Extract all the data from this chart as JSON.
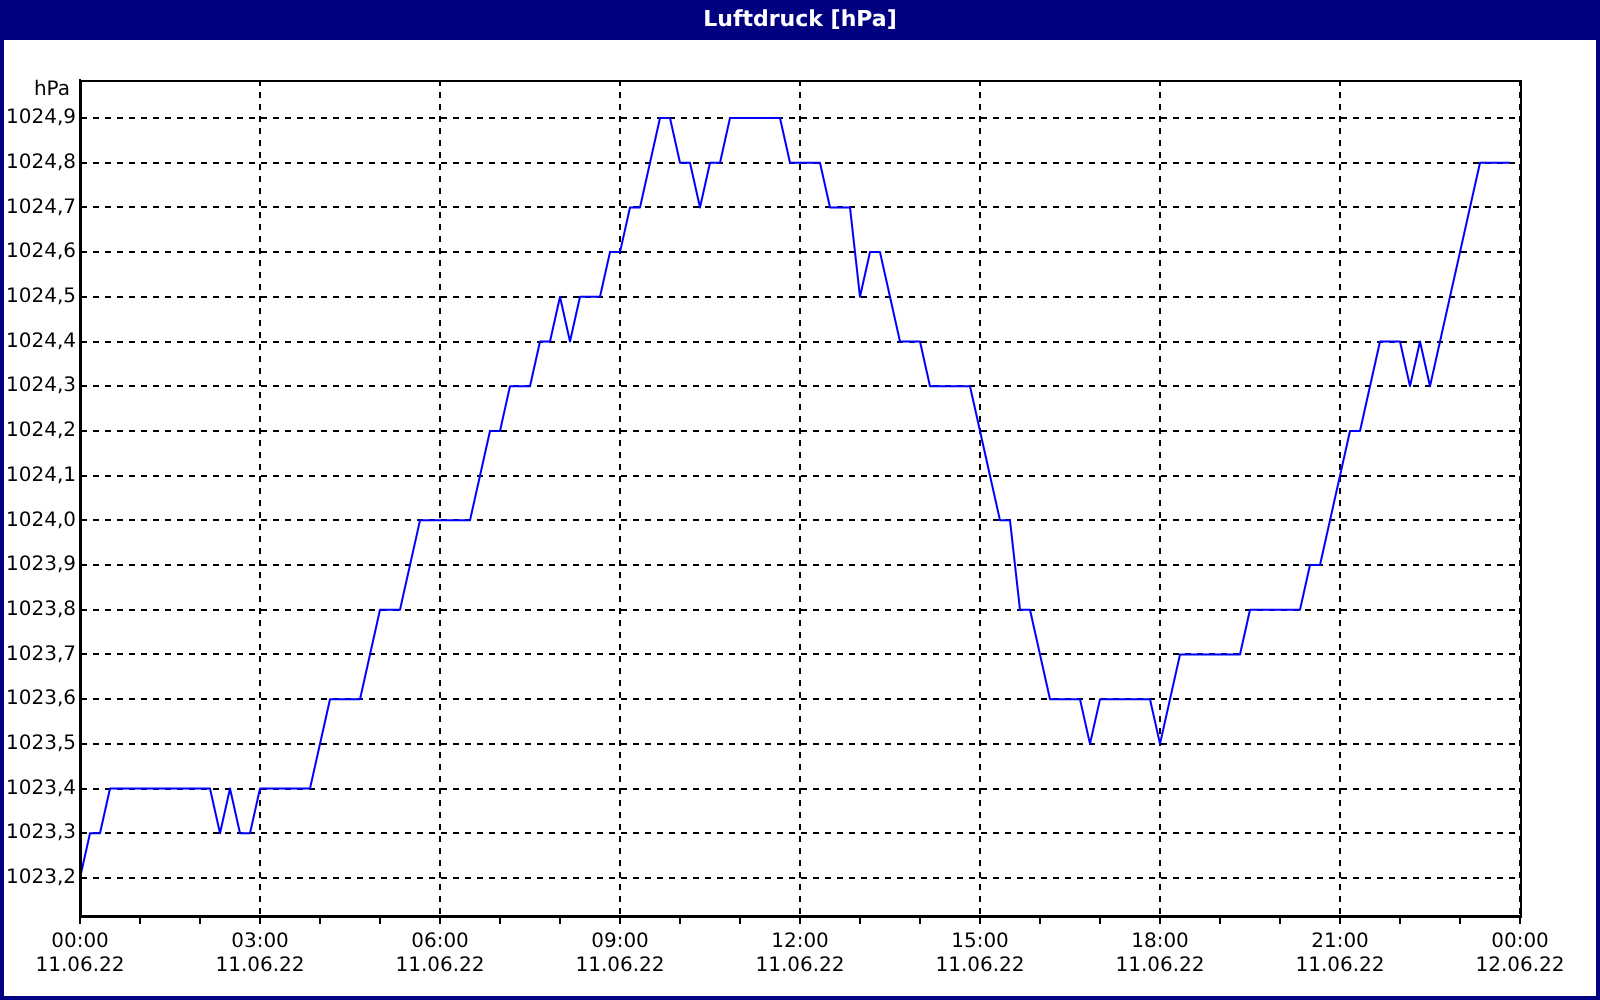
{
  "chart_data": {
    "type": "line",
    "title": "Luftdruck [hPa]",
    "ylabel": "hPa",
    "x": [
      "--06-11T00:00",
      "--06-11T00:10",
      "--06-11T00:20",
      "--06-11T00:30",
      "--06-11T02:10",
      "--06-11T02:20",
      "--06-11T02:30",
      "--06-11T02:40",
      "--06-11T02:50",
      "--06-11T03:00",
      "--06-11T03:50",
      "--06-11T04:10",
      "--06-11T04:40",
      "--06-11T05:00",
      "--06-11T05:20",
      "--06-11T05:40",
      "--06-11T06:30",
      "--06-11T06:50",
      "--06-11T07:00",
      "--06-11T07:10",
      "--06-11T07:30",
      "--06-11T07:40",
      "--06-11T07:50",
      "--06-11T08:00",
      "--06-11T08:10",
      "--06-11T08:20",
      "--06-11T08:40",
      "--06-11T08:50",
      "--06-11T09:00",
      "--06-11T09:10",
      "--06-11T09:20",
      "--06-11T09:40",
      "--06-11T09:50",
      "--06-11T10:00",
      "--06-11T10:10",
      "--06-11T10:20",
      "--06-11T10:30",
      "--06-11T10:40",
      "--06-11T10:50",
      "--06-11T11:40",
      "--06-11T11:50",
      "--06-11T12:20",
      "--06-11T12:30",
      "--06-11T12:50",
      "--06-11T13:00",
      "--06-11T13:10",
      "--06-11T13:20",
      "--06-11T13:40",
      "--06-11T14:00",
      "--06-11T14:10",
      "--06-11T14:50",
      "--06-11T15:20",
      "--06-11T15:30",
      "--06-11T15:40",
      "--06-11T15:50",
      "--06-11T16:00",
      "--06-11T16:10",
      "--06-11T16:40",
      "--06-11T16:50",
      "--06-11T17:00",
      "--06-11T17:50",
      "--06-11T18:00",
      "--06-11T18:20",
      "--06-11T19:20",
      "--06-11T19:30",
      "--06-11T20:20",
      "--06-11T20:30",
      "--06-11T20:40",
      "--06-11T21:10",
      "--06-11T21:20",
      "--06-11T21:40",
      "--06-11T22:00",
      "--06-11T22:10",
      "--06-11T22:20",
      "--06-11T22:30",
      "--06-11T23:20",
      "--06-11T23:50"
    ],
    "series": [
      {
        "color": "#0000ff",
        "values": [
          1023.2,
          1023.3,
          1023.3,
          1023.4,
          1023.4,
          1023.3,
          1023.4,
          1023.3,
          1023.3,
          1023.4,
          1023.4,
          1023.6,
          1023.6,
          1023.8,
          1023.8,
          1024.0,
          1024.0,
          1024.2,
          1024.2,
          1024.3,
          1024.3,
          1024.4,
          1024.4,
          1024.5,
          1024.4,
          1024.5,
          1024.5,
          1024.6,
          1024.6,
          1024.7,
          1024.7,
          1024.9,
          1024.9,
          1024.8,
          1024.8,
          1024.7,
          1024.8,
          1024.8,
          1024.9,
          1024.9,
          1024.8,
          1024.8,
          1024.7,
          1024.7,
          1024.5,
          1024.6,
          1024.6,
          1024.4,
          1024.4,
          1024.3,
          1024.3,
          1024.0,
          1024.0,
          1023.8,
          1023.8,
          1023.7,
          1023.6,
          1023.6,
          1023.5,
          1023.6,
          1023.6,
          1023.5,
          1023.7,
          1023.7,
          1023.8,
          1023.8,
          1023.9,
          1023.9,
          1024.2,
          1024.2,
          1024.4,
          1024.4,
          1024.3,
          1024.4,
          1024.3,
          1024.8,
          1024.8
        ]
      }
    ],
    "xlim": [
      "--06-11T00:00",
      "--06-12T00:00"
    ],
    "xticks": [
      {
        "value": "--06-11T00:00",
        "label": "00:00\n11.06.22"
      },
      {
        "value": "--06-11T01:00",
        "label": null
      },
      {
        "value": "--06-11T02:00",
        "label": null
      },
      {
        "value": "--06-11T03:00",
        "label": "03:00\n11.06.22"
      },
      {
        "value": "--06-11T04:00",
        "label": null
      },
      {
        "value": "--06-11T05:00",
        "label": null
      },
      {
        "value": "--06-11T06:00",
        "label": "06:00\n11.06.22"
      },
      {
        "value": "--06-11T07:00",
        "label": null
      },
      {
        "value": "--06-11T08:00",
        "label": null
      },
      {
        "value": "--06-11T09:00",
        "label": "09:00\n11.06.22"
      },
      {
        "value": "--06-11T10:00",
        "label": null
      },
      {
        "value": "--06-11T11:00",
        "label": null
      },
      {
        "value": "--06-11T12:00",
        "label": "12:00\n11.06.22"
      },
      {
        "value": "--06-11T13:00",
        "label": null
      },
      {
        "value": "--06-11T14:00",
        "label": null
      },
      {
        "value": "--06-11T15:00",
        "label": "15:00\n11.06.22"
      },
      {
        "value": "--06-11T16:00",
        "label": null
      },
      {
        "value": "--06-11T17:00",
        "label": null
      },
      {
        "value": "--06-11T18:00",
        "label": "18:00\n11.06.22"
      },
      {
        "value": "--06-11T19:00",
        "label": null
      },
      {
        "value": "--06-11T20:00",
        "label": null
      },
      {
        "value": "--06-11T21:00",
        "label": "21:00\n11.06.22"
      },
      {
        "value": "--06-11T22:00",
        "label": null
      },
      {
        "value": "--06-11T23:00",
        "label": null
      },
      {
        "value": "--06-12T00:00",
        "label": "00:00\n12.06.22"
      }
    ],
    "ylim": [
      1023.115,
      1024.985
    ],
    "yticks": [
      {
        "value": 1023.2,
        "label": "1023,2"
      },
      {
        "value": 1023.3,
        "label": "1023,3"
      },
      {
        "value": 1023.4,
        "label": "1023,4"
      },
      {
        "value": 1023.5,
        "label": "1023,5"
      },
      {
        "value": 1023.6,
        "label": "1023,6"
      },
      {
        "value": 1023.7,
        "label": "1023,7"
      },
      {
        "value": 1023.8,
        "label": "1023,8"
      },
      {
        "value": 1023.9,
        "label": "1023,9"
      },
      {
        "value": 1024.0,
        "label": "1024,0"
      },
      {
        "value": 1024.1,
        "label": "1024,1"
      },
      {
        "value": 1024.2,
        "label": "1024,2"
      },
      {
        "value": 1024.3,
        "label": "1024,3"
      },
      {
        "value": 1024.4,
        "label": "1024,4"
      },
      {
        "value": 1024.5,
        "label": "1024,5"
      },
      {
        "value": 1024.6,
        "label": "1024,6"
      },
      {
        "value": 1024.7,
        "label": "1024,7"
      },
      {
        "value": 1024.8,
        "label": "1024,8"
      },
      {
        "value": 1024.9,
        "label": "1024,9"
      }
    ],
    "grid": true,
    "legend": false,
    "marker": "none",
    "line_style": "solid"
  }
}
